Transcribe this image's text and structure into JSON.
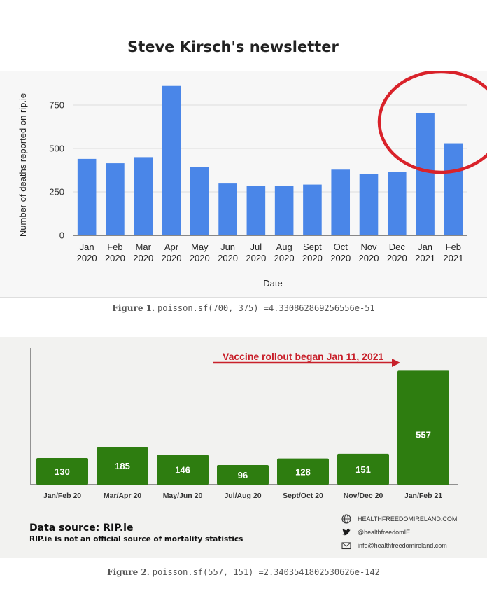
{
  "page": {
    "title": "Steve Kirsch's newsletter"
  },
  "figure1": {
    "caption_label": "Figure 1.",
    "caption_text": "poisson.sf(700, 375) =4.330862869256556e-51",
    "highlight_color": "#d9222a"
  },
  "figure2": {
    "caption_label": "Figure 2.",
    "caption_text": "poisson.sf(557, 151) =2.3403541802530626e-142",
    "annotation": "Vaccine rollout began Jan 11, 2021",
    "annotation_color": "#c8202a",
    "data_source": "Data source: RIP.ie",
    "disclaimer": "RIP.ie is not an official source of mortality statistics",
    "contacts": [
      {
        "icon": "globe-icon",
        "text": "HEALTHFREEDOMIRELAND.COM"
      },
      {
        "icon": "twitter-icon",
        "text": "@healthfreedomIE"
      },
      {
        "icon": "mail-icon",
        "text": "info@healthfreedomireland.com"
      }
    ]
  },
  "chart_data": [
    {
      "type": "bar",
      "categories": [
        "Jan 2020",
        "Feb 2020",
        "Mar 2020",
        "Apr 2020",
        "May 2020",
        "Jun 2020",
        "Jul 2020",
        "Aug 2020",
        "Sept 2020",
        "Oct 2020",
        "Nov 2020",
        "Dec 2020",
        "Jan 2021",
        "Feb 2021"
      ],
      "category_lines": [
        [
          "Jan",
          "2020"
        ],
        [
          "Feb",
          "2020"
        ],
        [
          "Mar",
          "2020"
        ],
        [
          "Apr",
          "2020"
        ],
        [
          "May",
          "2020"
        ],
        [
          "Jun",
          "2020"
        ],
        [
          "Jul",
          "2020"
        ],
        [
          "Aug",
          "2020"
        ],
        [
          "Sept",
          "2020"
        ],
        [
          "Oct",
          "2020"
        ],
        [
          "Nov",
          "2020"
        ],
        [
          "Dec",
          "2020"
        ],
        [
          "Jan",
          "2021"
        ],
        [
          "Feb",
          "2021"
        ]
      ],
      "values": [
        440,
        415,
        450,
        860,
        395,
        298,
        285,
        285,
        292,
        378,
        352,
        365,
        702,
        530
      ],
      "xlabel": "Date",
      "ylabel": "Number of deaths reported on rip.ie",
      "yticks": [
        0,
        250,
        500,
        750
      ],
      "ylim": [
        0,
        875
      ],
      "grid": true,
      "bar_color": "#4a86e8"
    },
    {
      "type": "bar",
      "categories": [
        "Jan/Feb 20",
        "Mar/Apr 20",
        "May/Jun 20",
        "Jul/Aug 20",
        "Sept/Oct 20",
        "Nov/Dec 20",
        "Jan/Feb 21"
      ],
      "values": [
        130,
        185,
        146,
        96,
        128,
        151,
        557
      ],
      "data_labels": [
        "130",
        "185",
        "146",
        "96",
        "128",
        "151",
        "557"
      ],
      "ylim": [
        0,
        620
      ],
      "grid": false,
      "bar_color": "#2e7d10"
    }
  ]
}
